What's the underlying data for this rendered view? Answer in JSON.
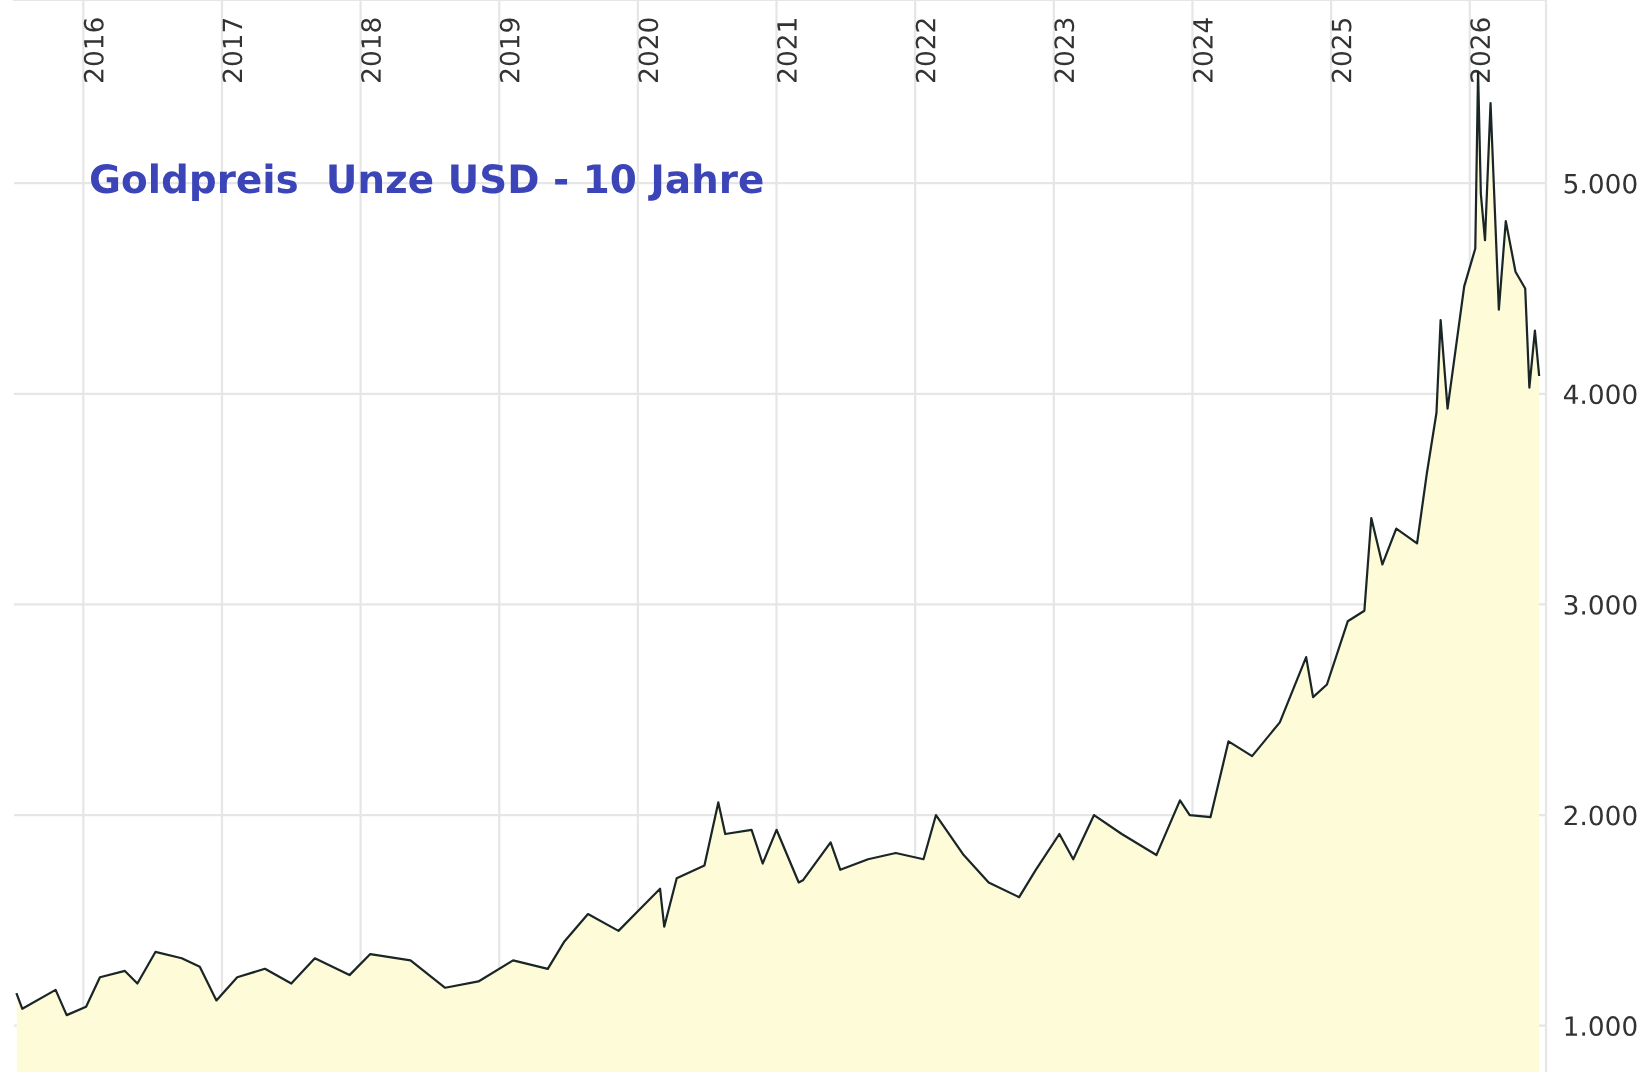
{
  "chart_data": {
    "type": "area",
    "title": "Goldpreis  Unze USD - 10 Jahre",
    "x": [
      2015.52,
      2015.56,
      2015.8,
      2015.88,
      2016.02,
      2016.12,
      2016.3,
      2016.39,
      2016.52,
      2016.71,
      2016.84,
      2016.96,
      2017.11,
      2017.31,
      2017.5,
      2017.67,
      2017.92,
      2018.07,
      2018.36,
      2018.61,
      2018.85,
      2019.1,
      2019.35,
      2019.47,
      2019.64,
      2019.86,
      2020.01,
      2020.16,
      2020.19,
      2020.28,
      2020.48,
      2020.58,
      2020.63,
      2020.82,
      2020.9,
      2021.0,
      2021.16,
      2021.19,
      2021.39,
      2021.46,
      2021.66,
      2021.86,
      2022.06,
      2022.15,
      2022.35,
      2022.53,
      2022.75,
      2022.87,
      2023.04,
      2023.14,
      2023.29,
      2023.49,
      2023.74,
      2023.91,
      2023.98,
      2024.13,
      2024.26,
      2024.43,
      2024.63,
      2024.82,
      2024.87,
      2024.97,
      2025.12,
      2025.24,
      2025.29,
      2025.37,
      2025.47,
      2025.62,
      2025.69,
      2025.76,
      2025.79,
      2025.84,
      2025.96,
      2026.04,
      2026.06,
      2026.08,
      2026.11,
      2026.15,
      2026.21,
      2026.26,
      2026.33,
      2026.4,
      2026.43,
      2026.47,
      2026.5
    ],
    "series": [
      {
        "color": "#1a2626",
        "values": [
          1150,
          1080,
          1170,
          1050,
          1090,
          1230,
          1260,
          1200,
          1350,
          1320,
          1280,
          1120,
          1230,
          1270,
          1200,
          1320,
          1240,
          1340,
          1310,
          1180,
          1210,
          1310,
          1270,
          1400,
          1530,
          1450,
          1550,
          1650,
          1470,
          1700,
          1760,
          2060,
          1910,
          1930,
          1770,
          1930,
          1680,
          1690,
          1870,
          1740,
          1790,
          1820,
          1790,
          2000,
          1810,
          1680,
          1610,
          1740,
          1910,
          1790,
          2000,
          1910,
          1810,
          2070,
          2000,
          1990,
          2350,
          2280,
          2440,
          2750,
          2560,
          2620,
          2920,
          2970,
          3410,
          3190,
          3360,
          3290,
          3620,
          3910,
          4350,
          3930,
          4510,
          4690,
          5530,
          4950,
          4730,
          5380,
          4400,
          4820,
          4580,
          4500,
          4030,
          4300,
          4090
        ]
      }
    ],
    "xlim": [
      2015.5,
      2026.55
    ],
    "xticks": [
      2016,
      2017,
      2018,
      2019,
      2020,
      2021,
      2022,
      2023,
      2024,
      2025,
      2026
    ],
    "ylim": [
      780,
      5870
    ],
    "yticks": [
      {
        "value": 1000,
        "label": "1.000"
      },
      {
        "value": 2000,
        "label": "2.000"
      },
      {
        "value": 3000,
        "label": "3.000"
      },
      {
        "value": 4000,
        "label": "4.000"
      },
      {
        "value": 5000,
        "label": "5.000"
      }
    ],
    "grid": true,
    "legend": false
  }
}
